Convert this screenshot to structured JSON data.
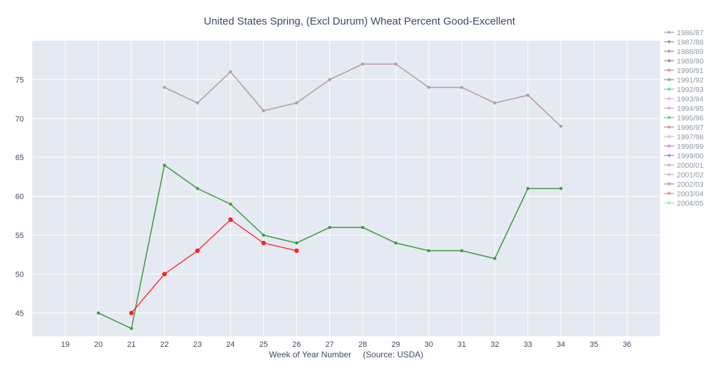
{
  "chart_data": {
    "type": "line",
    "title": "United States Spring, (Excl Durum) Wheat Percent Good-Excellent",
    "xlabel": "Week of Year Number     (Source: USDA)",
    "ylabel": "",
    "xlim": [
      18,
      37
    ],
    "ylim": [
      42,
      80
    ],
    "x_ticks": [
      19,
      20,
      21,
      22,
      23,
      24,
      25,
      26,
      27,
      28,
      29,
      30,
      31,
      32,
      33,
      34,
      35,
      36
    ],
    "y_ticks": [
      45,
      50,
      55,
      60,
      65,
      70,
      75
    ],
    "grid": true,
    "background": "#e5e9f2",
    "legend_position": "right",
    "series": [
      {
        "name": "1986/87",
        "color": "#8fa3c7",
        "x": [],
        "y": []
      },
      {
        "name": "1987/88",
        "color": "#a08f9a",
        "x": [],
        "y": []
      },
      {
        "name": "1988/89",
        "color": "#9a8fb3",
        "x": [],
        "y": []
      },
      {
        "name": "1989/90",
        "color": "#8a8a9a",
        "x": [],
        "y": []
      },
      {
        "name": "1990/91",
        "color": "#c98aa6",
        "x": [],
        "y": []
      },
      {
        "name": "1991/92",
        "color": "#7aa58f",
        "x": [],
        "y": []
      },
      {
        "name": "1992/93",
        "color": "#5fd0a8",
        "x": [],
        "y": []
      },
      {
        "name": "1993/94",
        "color": "#d6b0d6",
        "x": [],
        "y": []
      },
      {
        "name": "1994/95",
        "color": "#e29ee0",
        "x": [],
        "y": []
      },
      {
        "name": "1995/96",
        "color": "#6fb8a8",
        "x": [],
        "y": []
      },
      {
        "name": "1996/97",
        "color": "#c7908a",
        "x": [],
        "y": []
      },
      {
        "name": "1997/98",
        "color": "#d9b8c9",
        "x": [],
        "y": []
      },
      {
        "name": "1998/99",
        "color": "#d97fd9",
        "x": [],
        "y": []
      },
      {
        "name": "1999/00",
        "color": "#9a8ab8",
        "x": [],
        "y": []
      },
      {
        "name": "2000/01",
        "color": "#d8a8b0",
        "x": [],
        "y": []
      },
      {
        "name": "2001/02",
        "color": "#b8c0cc",
        "x": [],
        "y": []
      },
      {
        "name": "2002/03",
        "color": "#b59aa8",
        "x": [
          22,
          23,
          24,
          25,
          26,
          27,
          28,
          29,
          30,
          31,
          32,
          33,
          34
        ],
        "y": [
          74,
          72,
          76,
          71,
          72,
          75,
          77,
          77,
          74,
          74,
          72,
          73,
          69
        ]
      },
      {
        "name": "2003/04",
        "color": "#3a9a3a",
        "x": [
          20,
          21,
          22,
          23,
          24,
          25,
          26,
          27,
          28,
          29,
          30,
          31,
          32,
          33,
          34
        ],
        "y": [
          45,
          43,
          64,
          61,
          59,
          55,
          54,
          56,
          56,
          54,
          53,
          53,
          52,
          61,
          61
        ]
      },
      {
        "name": "2004/05",
        "color": "#ff2020",
        "x": [
          21,
          22,
          23,
          24,
          25,
          26
        ],
        "y": [
          45,
          50,
          53,
          57,
          54,
          53
        ]
      }
    ],
    "legend_colors": [
      "#a9b4cc",
      "#a89aa4",
      "#a79cbc",
      "#9a9aa8",
      "#d29ab4",
      "#8bb19c",
      "#78d7b4",
      "#dcbcdc",
      "#e6a8e6",
      "#82c2b2",
      "#d0a09a",
      "#dec3d2",
      "#df94df",
      "#a89cc0",
      "#ddb6bd",
      "#c5ccd5",
      "#b9a6b2",
      "#e49a9a",
      "#a6e6d6"
    ]
  }
}
